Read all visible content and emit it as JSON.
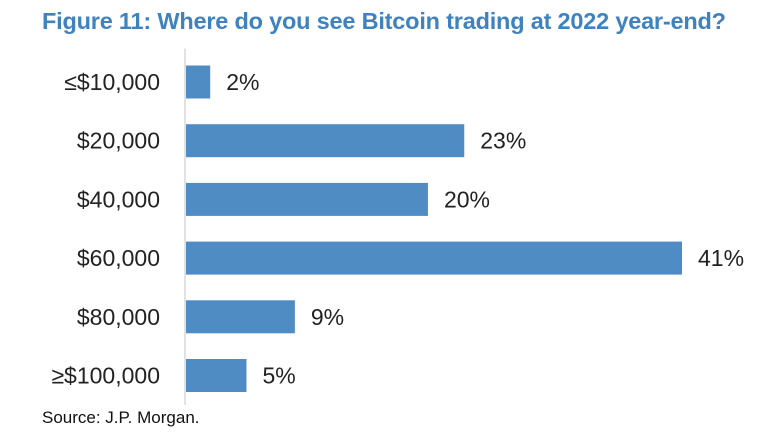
{
  "title": "Figure 11: Where do you see Bitcoin trading at 2022 year-end?",
  "source": "Source: J.P. Morgan.",
  "colors": {
    "title": "#3e82bf",
    "bar": "#4f8cc4",
    "axis": "#d9d9d9",
    "text": "#222222"
  },
  "chart_data": {
    "type": "bar",
    "orientation": "horizontal",
    "title": "Figure 11: Where do you see Bitcoin trading at 2022 year-end?",
    "categories": [
      "≤$10,000",
      "$20,000",
      "$40,000",
      "$60,000",
      "$80,000",
      "≥$100,000"
    ],
    "values": [
      2,
      23,
      20,
      41,
      9,
      5
    ],
    "value_labels": [
      "2%",
      "23%",
      "20%",
      "41%",
      "9%",
      "5%"
    ],
    "unit": "%",
    "xlabel": "",
    "ylabel": "",
    "xlim": [
      0,
      41
    ],
    "grid": false,
    "legend": "none"
  }
}
